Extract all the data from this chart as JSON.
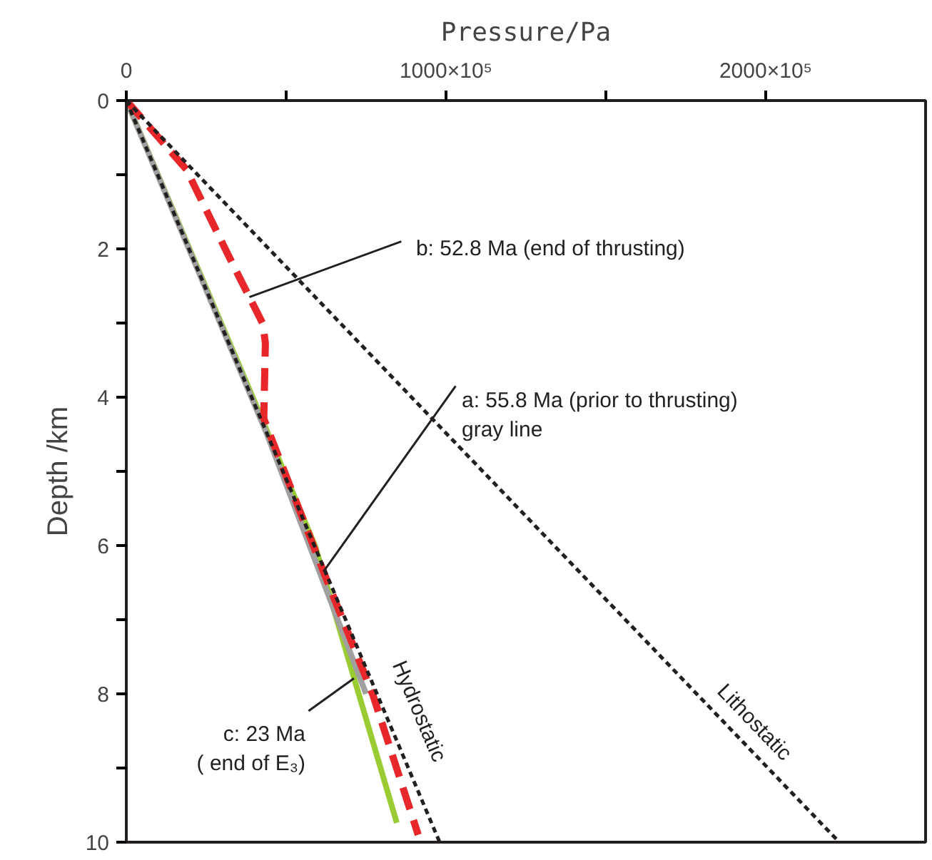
{
  "chart_data": {
    "type": "line",
    "xlabel": "Pressure/Pa",
    "ylabel": "Depth /km",
    "xlim": [
      0,
      250000000
    ],
    "ylim": [
      10,
      0
    ],
    "xticks": [
      0,
      {
        "value": 50000000,
        "label": null
      },
      {
        "value": 100000000,
        "label": "1000×10⁵"
      },
      {
        "value": 150000000,
        "label": null
      },
      {
        "value": 200000000,
        "label": "2000×10⁵"
      }
    ],
    "yticks": [
      0,
      {
        "value": 1,
        "label": null
      },
      2,
      {
        "value": 3,
        "label": null
      },
      4,
      {
        "value": 5,
        "label": null
      },
      6,
      {
        "value": 7,
        "label": null
      },
      8,
      {
        "value": 9,
        "label": null
      },
      10
    ],
    "grid": false,
    "series": [
      {
        "name": "Lithostatic",
        "color": "#231f20",
        "line_style": "dotted",
        "x": [
          0,
          223000000
        ],
        "values": [
          0,
          10
        ]
      },
      {
        "name": "Hydrostatic",
        "color": "#231f20",
        "line_style": "dotted",
        "x": [
          0,
          98000000
        ],
        "values": [
          0,
          10
        ]
      },
      {
        "color": "#99cc33",
        "line_style": "solid",
        "x": [
          0,
          42500000,
          59000000,
          84600000
        ],
        "values": [
          0,
          4.3,
          6,
          9.74
        ]
      },
      {
        "color": "#a0a0a0",
        "line_style": "solid",
        "x": [
          0,
          44000000,
          75000000
        ],
        "values": [
          0,
          4.5,
          8
        ]
      },
      {
        "color": "#e8272a",
        "line_style": "dashed",
        "x": [
          0,
          18800000,
          32300000,
          42700000,
          43500000,
          43000000,
          62200000,
          77100000,
          91300000
        ],
        "values": [
          0,
          0.93,
          2.12,
          3.01,
          3.27,
          4.29,
          6.41,
          8.01,
          9.9
        ]
      }
    ],
    "annotations": [
      {
        "text": "b: 52.8 Ma (end of thrusting)",
        "x": 38500000,
        "y": 2.65
      },
      {
        "text": "a: 55.8 Ma (prior to thrusting)\ngray line",
        "x": 61700000,
        "y": 6.35
      },
      {
        "text": "c: 23 Ma\n( end of E₃)",
        "x": 71200000,
        "y": 7.79
      }
    ]
  }
}
